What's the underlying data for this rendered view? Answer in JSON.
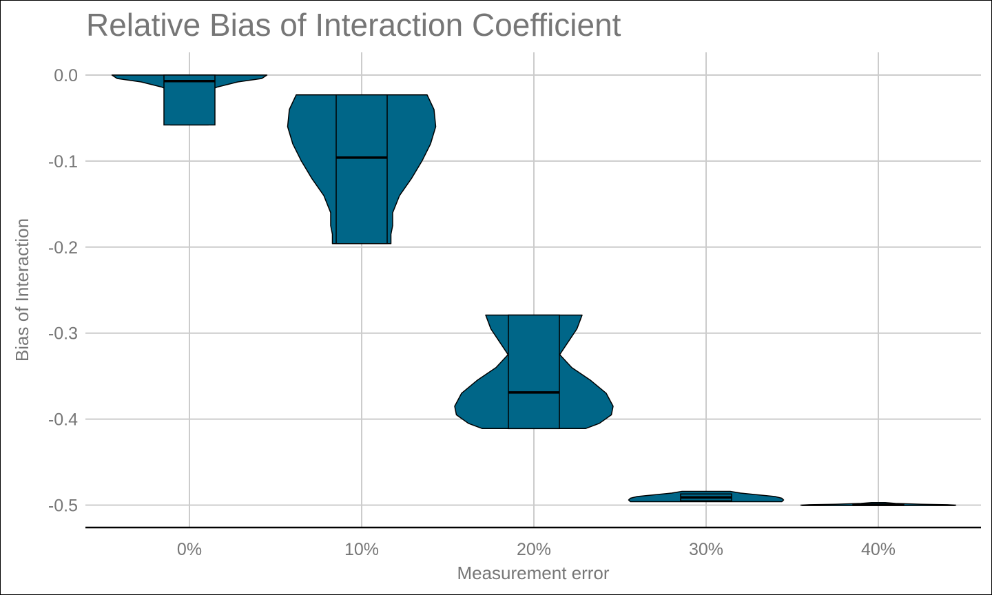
{
  "chart_data": {
    "type": "violin",
    "title": "Relative Bias of Interaction Coefficient",
    "xlabel": "Measurement error",
    "ylabel": "Bias of Interaction",
    "categories": [
      "0%",
      "10%",
      "20%",
      "30%",
      "40%"
    ],
    "ylim": [
      -0.525,
      0.012
    ],
    "yticks": [
      0.0,
      -0.1,
      -0.2,
      -0.3,
      -0.4,
      -0.5
    ],
    "ytick_labels": [
      "0.0",
      "-0.1",
      "-0.2",
      "-0.3",
      "-0.4",
      "-0.5"
    ],
    "grid": true,
    "fill_color": "#006688",
    "outline_color": "#000000",
    "grid_color": "#cccccc",
    "violins": [
      {
        "category": "0%",
        "min": -0.058,
        "q1": -0.058,
        "median": -0.007,
        "q3": 0.0,
        "max": 0.0,
        "profile": [
          [
            0.0,
            0.45
          ],
          [
            -0.004,
            0.42
          ],
          [
            -0.008,
            0.28
          ],
          [
            -0.014,
            0.16
          ],
          [
            -0.02,
            0.09
          ],
          [
            -0.028,
            0.06
          ],
          [
            -0.036,
            0.06
          ],
          [
            -0.044,
            0.08
          ],
          [
            -0.05,
            0.1
          ],
          [
            -0.054,
            0.11
          ],
          [
            -0.058,
            0.11
          ]
        ]
      },
      {
        "category": "10%",
        "min": -0.196,
        "q1": -0.196,
        "median": -0.096,
        "q3": -0.023,
        "max": -0.023,
        "profile": [
          [
            -0.023,
            0.38
          ],
          [
            -0.04,
            0.42
          ],
          [
            -0.06,
            0.43
          ],
          [
            -0.08,
            0.4
          ],
          [
            -0.1,
            0.35
          ],
          [
            -0.12,
            0.29
          ],
          [
            -0.14,
            0.22
          ],
          [
            -0.16,
            0.18
          ],
          [
            -0.175,
            0.18
          ],
          [
            -0.185,
            0.17
          ],
          [
            -0.196,
            0.17
          ]
        ]
      },
      {
        "category": "20%",
        "min": -0.411,
        "q1": -0.411,
        "median": -0.369,
        "q3": -0.279,
        "max": -0.279,
        "profile": [
          [
            -0.279,
            0.28
          ],
          [
            -0.295,
            0.25
          ],
          [
            -0.31,
            0.2
          ],
          [
            -0.325,
            0.15
          ],
          [
            -0.34,
            0.22
          ],
          [
            -0.355,
            0.33
          ],
          [
            -0.37,
            0.42
          ],
          [
            -0.385,
            0.46
          ],
          [
            -0.395,
            0.45
          ],
          [
            -0.405,
            0.38
          ],
          [
            -0.411,
            0.3
          ]
        ]
      },
      {
        "category": "30%",
        "min": -0.496,
        "q1": -0.495,
        "median": -0.491,
        "q3": -0.487,
        "max": -0.484,
        "profile": [
          [
            -0.484,
            0.14
          ],
          [
            -0.486,
            0.2
          ],
          [
            -0.488,
            0.3
          ],
          [
            -0.49,
            0.4
          ],
          [
            -0.492,
            0.44
          ],
          [
            -0.494,
            0.45
          ],
          [
            -0.496,
            0.44
          ]
        ]
      },
      {
        "category": "40%",
        "min": -0.5005,
        "q1": -0.5003,
        "median": -0.4995,
        "q3": -0.4985,
        "max": -0.497,
        "profile": [
          [
            -0.497,
            0.04
          ],
          [
            -0.498,
            0.1
          ],
          [
            -0.499,
            0.25
          ],
          [
            -0.4995,
            0.4
          ],
          [
            -0.5,
            0.45
          ],
          [
            -0.5005,
            0.44
          ]
        ]
      }
    ]
  }
}
